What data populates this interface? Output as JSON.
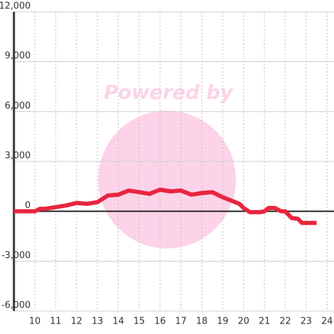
{
  "chart_data": {
    "type": "line",
    "watermark": "Powered by",
    "x": [
      9,
      10,
      10.25,
      10.5,
      11,
      11.5,
      12,
      12.5,
      13,
      13.5,
      14,
      14.5,
      15,
      15.5,
      16,
      16.5,
      17,
      17.5,
      18,
      18.5,
      19,
      19.5,
      19.8,
      20,
      20.3,
      20.8,
      21,
      21.2,
      21.5,
      21.8,
      22,
      22.3,
      22.6,
      22.8,
      23.5
    ],
    "series": [
      {
        "color": "#e8253f",
        "values": [
          0,
          0,
          150,
          150,
          250,
          350,
          500,
          450,
          550,
          950,
          1000,
          1250,
          1150,
          1050,
          1300,
          1200,
          1250,
          1000,
          1100,
          1150,
          850,
          600,
          450,
          200,
          -50,
          -50,
          0,
          200,
          200,
          0,
          0,
          -400,
          -450,
          -700,
          -700
        ]
      }
    ],
    "xlim": [
      9,
      24
    ],
    "xticks": [
      10,
      11,
      12,
      13,
      14,
      15,
      16,
      17,
      18,
      19,
      20,
      21,
      22,
      23,
      24
    ],
    "ylim": [
      -6000,
      12000
    ],
    "yticks": [
      {
        "value": -6000,
        "label": "-6,000"
      },
      {
        "value": -3000,
        "label": "-3,000"
      },
      0,
      {
        "value": 3000,
        "label": "3,000"
      },
      {
        "value": 6000,
        "label": "6,000"
      },
      {
        "value": 9000,
        "label": "9,000"
      },
      {
        "value": 12000,
        "label": "12,000"
      }
    ],
    "grid": true
  }
}
